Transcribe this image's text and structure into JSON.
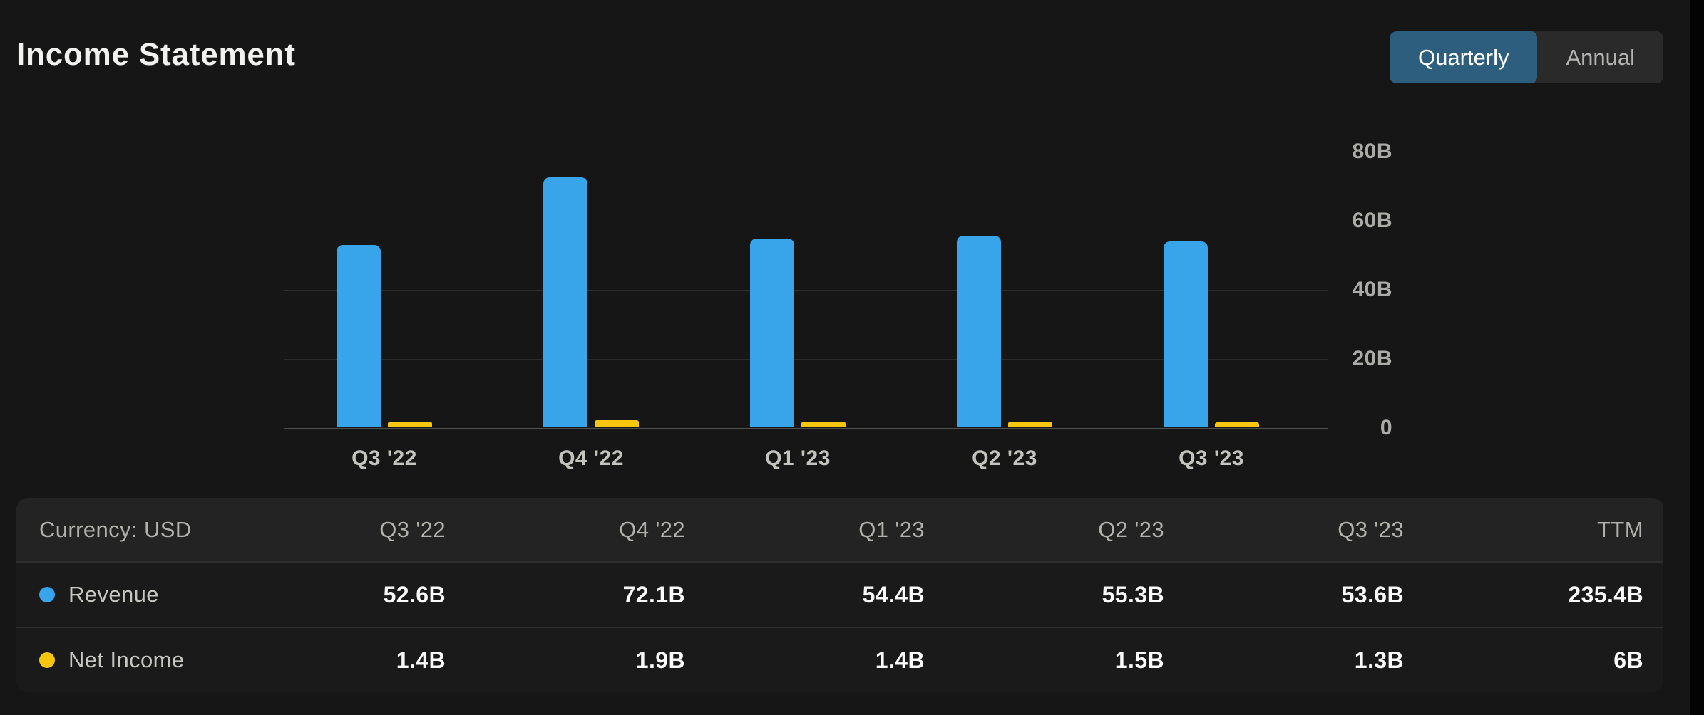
{
  "page": {
    "title": "Income Statement"
  },
  "toggle": {
    "options": [
      {
        "label": "Quarterly",
        "active": true
      },
      {
        "label": "Annual",
        "active": false
      }
    ],
    "active_bg": "#2e5e7e"
  },
  "chart_data": {
    "type": "bar",
    "categories": [
      "Q3 '22",
      "Q4 '22",
      "Q1 '23",
      "Q2 '23",
      "Q3 '23"
    ],
    "series": [
      {
        "name": "Revenue",
        "color": "#38a4ea",
        "values": [
          52.6,
          72.1,
          54.4,
          55.3,
          53.6
        ]
      },
      {
        "name": "Net Income",
        "color": "#f7c60d",
        "values": [
          1.4,
          1.9,
          1.4,
          1.5,
          1.3
        ]
      }
    ],
    "ytick_labels": [
      "80B",
      "60B",
      "40B",
      "20B",
      "0"
    ],
    "ytick_values": [
      80,
      60,
      40,
      20,
      0
    ],
    "ylim": [
      0,
      80
    ],
    "unit": "B",
    "grid": true,
    "legend_position": "table-rows"
  },
  "table": {
    "header": [
      "Currency: USD",
      "Q3 '22",
      "Q4 '22",
      "Q1 '23",
      "Q2 '23",
      "Q3 '23",
      "TTM"
    ],
    "rows": [
      {
        "label": "Revenue",
        "dot_color": "#38a4ea",
        "values": [
          "52.6B",
          "72.1B",
          "54.4B",
          "55.3B",
          "53.6B",
          "235.4B"
        ]
      },
      {
        "label": "Net Income",
        "dot_color": "#f7c60d",
        "values": [
          "1.4B",
          "1.9B",
          "1.4B",
          "1.5B",
          "1.3B",
          "6B"
        ]
      }
    ]
  },
  "colors": {
    "background": "#161616",
    "table_header_bg": "#232323",
    "table_row_bg": "#1a1a1a",
    "gridline": "#2b2b2b",
    "axis_baseline": "#4f4f4f",
    "revenue_blue": "#38a4ea",
    "net_income_yellow": "#f7c60d",
    "toggle_active_bg": "#2e5e7e"
  }
}
